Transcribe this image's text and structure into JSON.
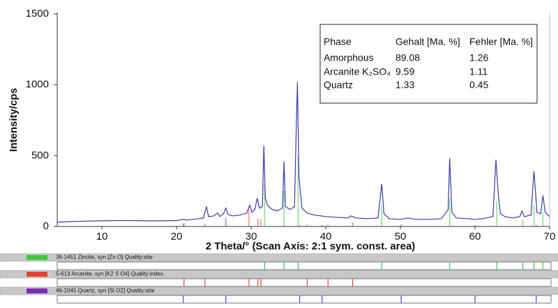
{
  "chart_data": {
    "type": "line",
    "y_label": "Intensity/cps",
    "x_label": "2 Theta/°  (Scan Axis: 2:1 sym. const. area)",
    "xlim": [
      4,
      70
    ],
    "ylim": [
      0,
      1500
    ],
    "xticks": [
      10,
      20,
      30,
      40,
      50,
      60,
      70
    ],
    "yticks": [
      0,
      500,
      1000,
      1500
    ],
    "series": [
      {
        "color": "#3a3aa8",
        "x": [
          4,
          6,
          8,
          10,
          12,
          14,
          16,
          18,
          20,
          21,
          21.3,
          22,
          23,
          23.6,
          24,
          24.3,
          25,
          25.5,
          25.8,
          26.3,
          26.6,
          26.9,
          27.5,
          28.5,
          29.4,
          29.8,
          30.1,
          30.5,
          30.8,
          31.1,
          31.5,
          31.7,
          31.9,
          32.2,
          32.8,
          33.5,
          34.2,
          34.4,
          34.6,
          35.2,
          35.8,
          36.0,
          36.2,
          36.4,
          36.8,
          37.5,
          38.5,
          40,
          41.5,
          43,
          43.4,
          44,
          45.5,
          47,
          47.5,
          47.8,
          48.5,
          50,
          51,
          52,
          54,
          55.5,
          56.4,
          56.6,
          56.9,
          57.5,
          59,
          60,
          61,
          62.4,
          62.8,
          63.1,
          63.4,
          64,
          65,
          66,
          66.3,
          66.6,
          67.5,
          67.9,
          68.1,
          68.3,
          68.8,
          69.1,
          69.4,
          69.8,
          70
        ],
        "values": [
          30,
          35,
          38,
          40,
          42,
          42,
          40,
          40,
          42,
          50,
          45,
          48,
          55,
          60,
          140,
          70,
          75,
          95,
          70,
          90,
          130,
          85,
          75,
          80,
          95,
          150,
          100,
          120,
          200,
          130,
          140,
          570,
          200,
          150,
          120,
          110,
          130,
          460,
          140,
          120,
          140,
          600,
          1020,
          350,
          130,
          95,
          80,
          70,
          65,
          60,
          75,
          60,
          55,
          60,
          300,
          90,
          55,
          50,
          60,
          50,
          50,
          55,
          120,
          480,
          100,
          60,
          55,
          50,
          55,
          70,
          470,
          240,
          90,
          70,
          60,
          70,
          110,
          70,
          80,
          390,
          250,
          100,
          90,
          220,
          100,
          80,
          70
        ]
      }
    ],
    "table": {
      "header": [
        "Phase",
        "Gehalt [Ma. %]",
        "Fehler [Ma. %]"
      ],
      "rows": [
        [
          "Amorphous",
          89.08,
          1.26
        ],
        [
          "Arcanite K₂SO₄",
          9.59,
          1.11
        ],
        [
          "Quartz",
          1.33,
          0.45
        ]
      ]
    },
    "phases": [
      {
        "label": "36-1451   Zincite, syn   [Zn O]   Quality:star",
        "color": "#3cc83c",
        "positions": [
          31.8,
          34.4,
          36.3,
          47.5,
          56.6,
          62.9,
          66.4,
          67.9,
          69.1
        ],
        "heights": [
          300,
          250,
          500,
          150,
          200,
          180,
          50,
          150,
          100
        ]
      },
      {
        "label": "5-613   Arcanite, syn   [K2 S O4]   Quality:index.",
        "color": "#e8402a",
        "positions": [
          21.0,
          23.8,
          29.7,
          30.9,
          31.3,
          37.5,
          40.3,
          43.6
        ],
        "heights": [
          25,
          20,
          120,
          55,
          50,
          15,
          15,
          30
        ]
      },
      {
        "label": "46-1045   Quartz, syn   [Si O2]   Quality:star",
        "color": "#7a2bb8",
        "positions": [
          20.9,
          26.6,
          36.5,
          39.5,
          50.1,
          60.0,
          68.2
        ],
        "heights": [
          20,
          60,
          10,
          10,
          15,
          10,
          10
        ]
      }
    ]
  }
}
